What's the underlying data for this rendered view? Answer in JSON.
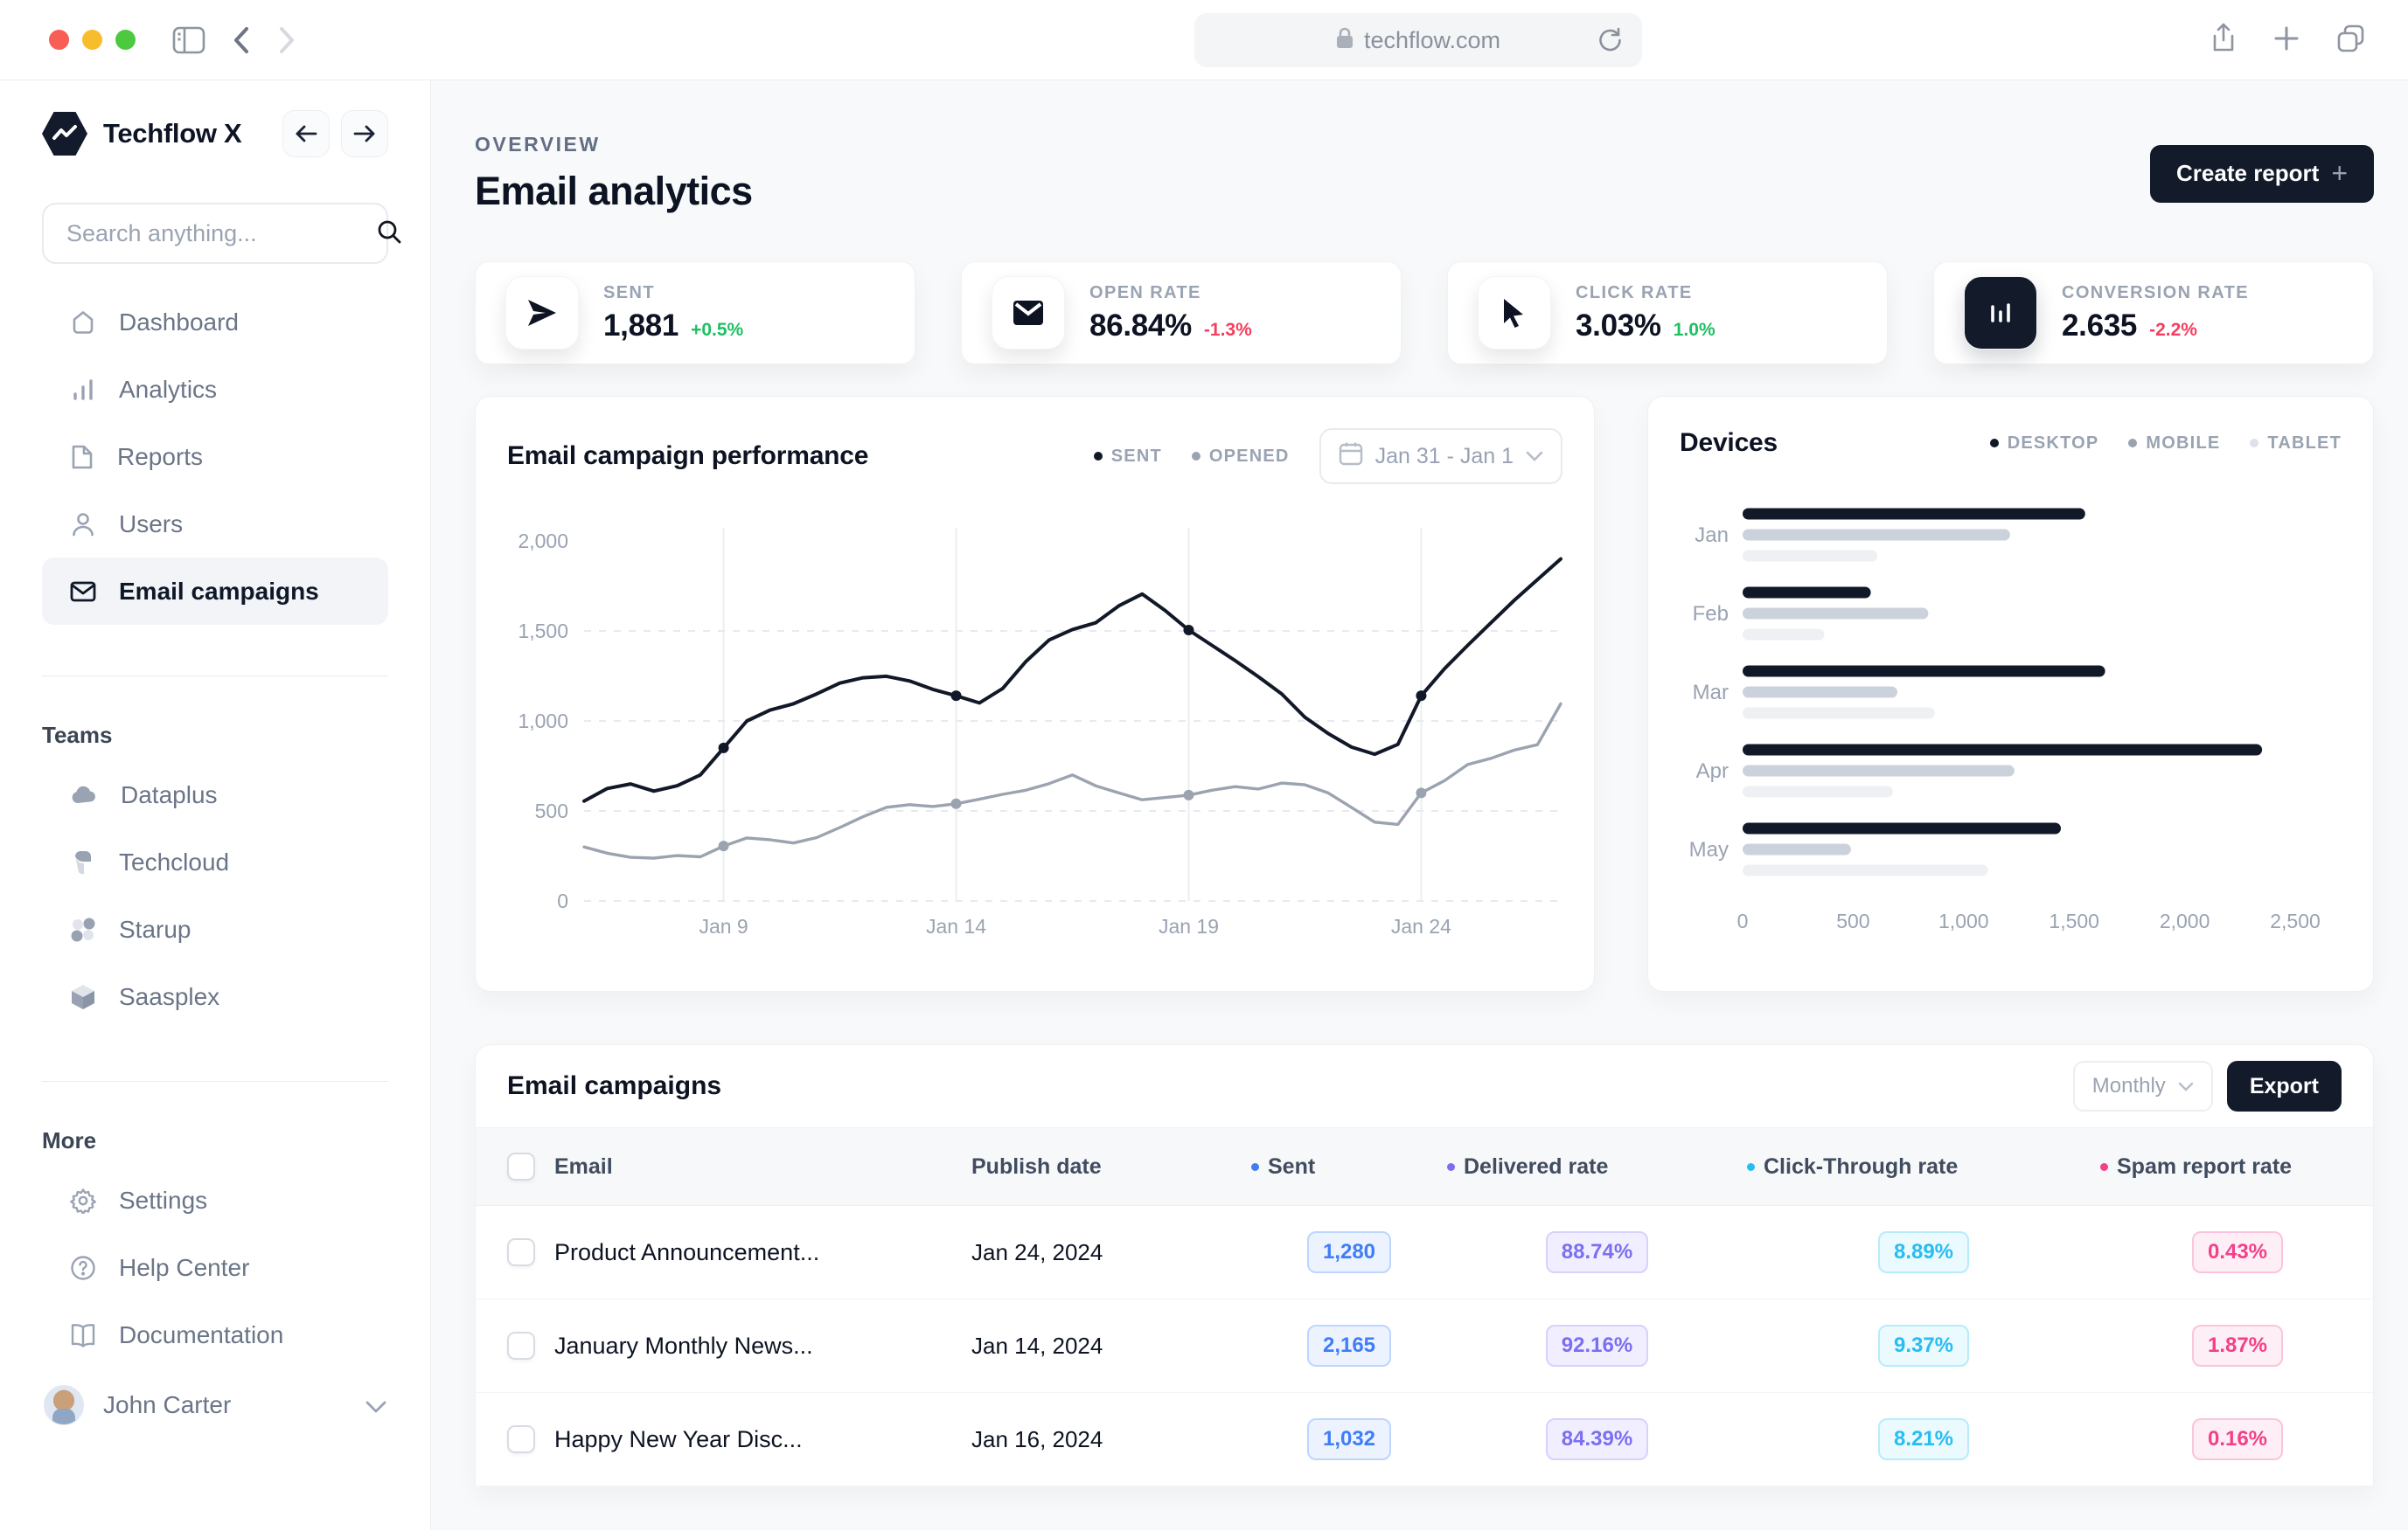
{
  "browser": {
    "url": "techflow.com"
  },
  "sidebar": {
    "brand": "Techflow X",
    "search_placeholder": "Search anything...",
    "nav": [
      {
        "label": "Dashboard",
        "icon": "home-icon"
      },
      {
        "label": "Analytics",
        "icon": "bar-chart-icon"
      },
      {
        "label": "Reports",
        "icon": "document-icon"
      },
      {
        "label": "Users",
        "icon": "user-icon"
      },
      {
        "label": "Email campaigns",
        "icon": "envelope-icon",
        "active": true
      }
    ],
    "teams_label": "Teams",
    "teams": [
      {
        "label": "Dataplus",
        "icon": "cloud-icon"
      },
      {
        "label": "Techcloud",
        "icon": "abstract-shape-icon"
      },
      {
        "label": "Starup",
        "icon": "four-dots-icon"
      },
      {
        "label": "Saasplex",
        "icon": "cube-icon"
      }
    ],
    "more_label": "More",
    "more": [
      {
        "label": "Settings",
        "icon": "gear-icon"
      },
      {
        "label": "Help Center",
        "icon": "question-circle-icon"
      },
      {
        "label": "Documentation",
        "icon": "book-icon"
      }
    ],
    "user": {
      "name": "John Carter"
    }
  },
  "header": {
    "eyebrow": "OVERVIEW",
    "title": "Email analytics",
    "create_report": "Create report",
    "plus": "+"
  },
  "stats": [
    {
      "label": "SENT",
      "value": "1,881",
      "delta": "+0.5%",
      "direction": "up",
      "icon": "send-icon"
    },
    {
      "label": "OPEN RATE",
      "value": "86.84%",
      "delta": "-1.3%",
      "direction": "down",
      "icon": "mail-icon"
    },
    {
      "label": "CLICK RATE",
      "value": "3.03%",
      "delta": "1.0%",
      "direction": "up",
      "icon": "cursor-icon"
    },
    {
      "label": "CONVERSION RATE",
      "value": "2.635",
      "delta": "-2.2%",
      "direction": "down",
      "icon": "bar-tile-icon"
    }
  ],
  "performance_panel": {
    "title": "Email campaign performance",
    "legend": [
      {
        "label": "SENT",
        "color": "#111827"
      },
      {
        "label": "OPENED",
        "color": "#9aa3af"
      }
    ],
    "date_range": "Jan 31 - Jan 1"
  },
  "devices_panel": {
    "title": "Devices",
    "legend": [
      {
        "label": "DESKTOP",
        "color": "#111827"
      },
      {
        "label": "MOBILE",
        "color": "#9aa3af"
      },
      {
        "label": "TABLET",
        "color": "#dde2e9"
      }
    ]
  },
  "chart_data": [
    {
      "id": "performance",
      "type": "line",
      "title": "Email campaign performance",
      "xlabel": "date (January)",
      "ylabel": "emails",
      "x_range": [
        6,
        27
      ],
      "ylim": [
        0,
        2000
      ],
      "grid": "dashed-horizontal + vertical tick lines",
      "legend_position": "top-right",
      "yticks": [
        {
          "v": 0,
          "label": "0"
        },
        {
          "v": 500,
          "label": "500"
        },
        {
          "v": 1000,
          "label": "1,000"
        },
        {
          "v": 1500,
          "label": "1,500"
        },
        {
          "v": 2000,
          "label": "2,000"
        }
      ],
      "xticks": [
        {
          "v": 9,
          "label": "Jan 9"
        },
        {
          "v": 14,
          "label": "Jan 14"
        },
        {
          "v": 19,
          "label": "Jan 19"
        },
        {
          "v": 24,
          "label": "Jan 24"
        }
      ],
      "marker_x": [
        9,
        14,
        19,
        24
      ],
      "x": [
        6,
        6.5,
        7,
        7.5,
        8,
        8.5,
        9,
        9.5,
        10,
        10.5,
        11,
        11.5,
        12,
        12.5,
        13,
        13.5,
        14,
        14.5,
        15,
        15.5,
        16,
        16.5,
        17,
        17.5,
        18,
        18.5,
        19,
        19.5,
        20,
        20.5,
        21,
        21.5,
        22,
        22.5,
        23,
        23.5,
        24,
        24.5,
        25,
        25.5,
        26,
        26.5,
        27
      ],
      "series": [
        {
          "name": "SENT",
          "color": "#111827",
          "values": [
            555,
            625,
            650,
            610,
            640,
            700,
            850,
            1000,
            1060,
            1095,
            1150,
            1210,
            1240,
            1248,
            1222,
            1175,
            1140,
            1100,
            1180,
            1330,
            1450,
            1508,
            1545,
            1640,
            1705,
            1612,
            1505,
            1420,
            1335,
            1245,
            1150,
            1020,
            930,
            855,
            815,
            870,
            1140,
            1290,
            1420,
            1545,
            1670,
            1785,
            1900
          ]
        },
        {
          "name": "OPENED",
          "color": "#9aa3af",
          "values": [
            300,
            265,
            242,
            238,
            252,
            245,
            305,
            350,
            340,
            322,
            352,
            408,
            468,
            520,
            535,
            525,
            540,
            565,
            592,
            615,
            652,
            700,
            640,
            600,
            562,
            575,
            588,
            615,
            635,
            622,
            655,
            645,
            600,
            520,
            438,
            425,
            600,
            668,
            758,
            792,
            838,
            868,
            1095
          ]
        }
      ]
    },
    {
      "id": "devices",
      "type": "bar",
      "orientation": "horizontal",
      "title": "Devices",
      "categories": [
        "Jan",
        "Feb",
        "Mar",
        "Apr",
        "May"
      ],
      "series": [
        {
          "name": "DESKTOP",
          "color": "#111827",
          "values": [
            1550,
            580,
            1640,
            2350,
            1440
          ]
        },
        {
          "name": "MOBILE",
          "color": "#ccd2dc",
          "values": [
            1210,
            840,
            700,
            1230,
            490
          ]
        },
        {
          "name": "TABLET",
          "color": "#eef0f4",
          "values": [
            610,
            370,
            870,
            680,
            1110
          ]
        }
      ],
      "xlim": [
        0,
        2500
      ],
      "xticks": [
        {
          "v": 0,
          "label": "0"
        },
        {
          "v": 500,
          "label": "500"
        },
        {
          "v": 1000,
          "label": "1,000"
        },
        {
          "v": 1500,
          "label": "1,500"
        },
        {
          "v": 2000,
          "label": "2,000"
        },
        {
          "v": 2500,
          "label": "2,500"
        }
      ]
    }
  ],
  "table": {
    "title": "Email campaigns",
    "filter": "Monthly",
    "export_label": "Export",
    "columns": [
      {
        "label": "Email"
      },
      {
        "label": "Publish date"
      },
      {
        "label": "Sent",
        "dot": "#3f7df6"
      },
      {
        "label": "Delivered rate",
        "dot": "#7a6ff0"
      },
      {
        "label": "Click-Through rate",
        "dot": "#27bdf2"
      },
      {
        "label": "Spam report rate",
        "dot": "#f24089"
      }
    ],
    "rows": [
      {
        "email": "Product Announcement...",
        "date": "Jan 24, 2024",
        "sent": "1,280",
        "delivered": "88.74%",
        "click": "8.89%",
        "spam": "0.43%"
      },
      {
        "email": "January Monthly News...",
        "date": "Jan 14, 2024",
        "sent": "2,165",
        "delivered": "92.16%",
        "click": "9.37%",
        "spam": "1.87%"
      },
      {
        "email": "Happy New Year Disc...",
        "date": "Jan 16, 2024",
        "sent": "1,032",
        "delivered": "84.39%",
        "click": "8.21%",
        "spam": "0.16%"
      }
    ]
  },
  "colors": {
    "accent_dark": "#131a2a",
    "positive": "#1fbf63",
    "negative": "#f43f5e",
    "muted_text": "#9aa3b2",
    "main_bg": "#f8f9fa"
  }
}
